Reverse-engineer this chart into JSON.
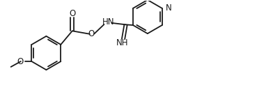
{
  "background_color": "#ffffff",
  "line_color": "#1a1a1a",
  "line_width": 1.3,
  "font_size": 8.5,
  "fig_width": 3.92,
  "fig_height": 1.52,
  "dpi": 100,
  "xlim": [
    0,
    11.0
  ],
  "ylim": [
    0,
    4.2
  ]
}
